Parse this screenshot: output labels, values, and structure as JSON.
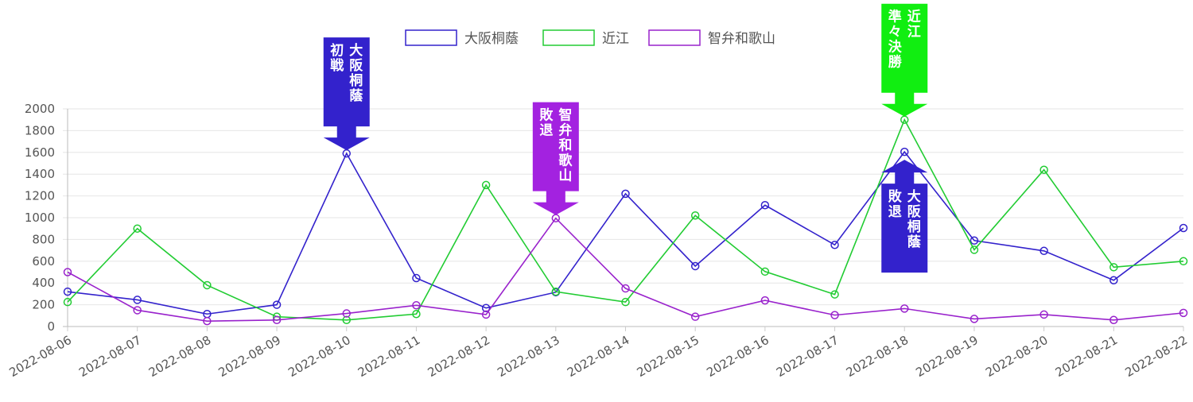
{
  "chart_data": {
    "type": "line",
    "x": [
      "2022-08-06",
      "2022-08-07",
      "2022-08-08",
      "2022-08-09",
      "2022-08-10",
      "2022-08-11",
      "2022-08-12",
      "2022-08-13",
      "2022-08-14",
      "2022-08-15",
      "2022-08-16",
      "2022-08-17",
      "2022-08-18",
      "2022-08-19",
      "2022-08-20",
      "2022-08-21",
      "2022-08-22"
    ],
    "ylim": [
      0,
      2000
    ],
    "yticks": [
      0,
      200,
      400,
      600,
      800,
      1000,
      1200,
      1400,
      1600,
      1800,
      2000
    ],
    "grid": true,
    "legend_position": "top",
    "series": [
      {
        "name": "大阪桐蔭",
        "color": "#3322cc",
        "values": [
          320,
          245,
          115,
          200,
          1590,
          445,
          170,
          315,
          1220,
          555,
          1115,
          750,
          1605,
          790,
          695,
          425,
          905
        ]
      },
      {
        "name": "近江",
        "color": "#22cc33",
        "values": [
          225,
          900,
          380,
          90,
          60,
          115,
          1300,
          320,
          225,
          1020,
          505,
          295,
          1900,
          705,
          1440,
          545,
          600
        ]
      },
      {
        "name": "智弁和歌山",
        "color": "#9922cc",
        "values": [
          500,
          150,
          50,
          60,
          120,
          195,
          110,
          995,
          350,
          90,
          240,
          105,
          165,
          70,
          110,
          60,
          125
        ]
      }
    ],
    "annotations": [
      {
        "x": "2022-08-10",
        "y": 1590,
        "direction": "down",
        "color": "#3322cc",
        "lines": [
          "大阪桐蔭",
          "初戦"
        ]
      },
      {
        "x": "2022-08-13",
        "y": 995,
        "direction": "down",
        "color": "#a322e0",
        "lines": [
          "智弁和歌山",
          "敗退"
        ]
      },
      {
        "x": "2022-08-18",
        "y": 1900,
        "direction": "down",
        "color": "#11ee11",
        "lines": [
          "近江",
          "準々決勝"
        ]
      },
      {
        "x": "2022-08-18",
        "y": 1605,
        "direction": "up",
        "color": "#3322cc",
        "lines": [
          "大阪桐蔭",
          "敗退"
        ]
      }
    ]
  }
}
